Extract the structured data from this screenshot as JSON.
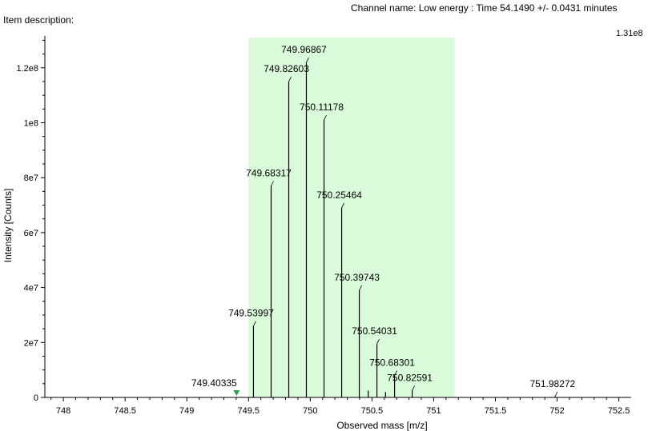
{
  "header": {
    "item_description": "Item description:",
    "channel": "Channel name: Low energy : Time 54.1490 +/- 0.0431 minutes",
    "scale_max": "1.31e8"
  },
  "chart_data": {
    "type": "bar",
    "title": "",
    "xlabel": "Observed mass [m/z]",
    "ylabel": "Intensity [Counts]",
    "xlim": [
      747.85,
      752.6
    ],
    "ylim": [
      0,
      131000000
    ],
    "x_ticks": [
      748,
      748.5,
      749,
      749.5,
      750,
      750.5,
      751,
      751.5,
      752,
      752.5
    ],
    "x_tick_labels": [
      "748",
      "748.5",
      "749",
      "749.5",
      "750",
      "750.5",
      "751",
      "751.5",
      "752",
      "752.5"
    ],
    "y_ticks": [
      0,
      20000000,
      40000000,
      60000000,
      80000000,
      100000000,
      120000000
    ],
    "y_tick_labels": [
      "0",
      "2e7",
      "4e7",
      "6e7",
      "8e7",
      "1e8",
      "1.2e8"
    ],
    "highlight_range": [
      749.5,
      751.17
    ],
    "highlight_color": "#d9fbd9",
    "marker": {
      "x": 749.40335,
      "label": "749.40335",
      "color": "#2e9e4e"
    },
    "peaks": [
      {
        "x": 749.53997,
        "y": 26000000,
        "label": "749.53997"
      },
      {
        "x": 749.68317,
        "y": 77000000,
        "label": "749.68317"
      },
      {
        "x": 749.82603,
        "y": 115000000,
        "label": "749.82603"
      },
      {
        "x": 749.96867,
        "y": 122000000,
        "label": "749.96867"
      },
      {
        "x": 750.11178,
        "y": 101000000,
        "label": "750.11178"
      },
      {
        "x": 750.25464,
        "y": 69000000,
        "label": "750.25464"
      },
      {
        "x": 750.39743,
        "y": 39000000,
        "label": "750.39743"
      },
      {
        "x": 750.54031,
        "y": 19500000,
        "label": "750.54031"
      },
      {
        "x": 750.68301,
        "y": 8000000,
        "label": "750.68301"
      },
      {
        "x": 750.82591,
        "y": 2500000,
        "label": "750.82591"
      },
      {
        "x": 750.47,
        "y": 2500000,
        "label": ""
      },
      {
        "x": 750.61,
        "y": 2000000,
        "label": ""
      },
      {
        "x": 751.98272,
        "y": 300000,
        "label": "751.98272"
      }
    ]
  }
}
